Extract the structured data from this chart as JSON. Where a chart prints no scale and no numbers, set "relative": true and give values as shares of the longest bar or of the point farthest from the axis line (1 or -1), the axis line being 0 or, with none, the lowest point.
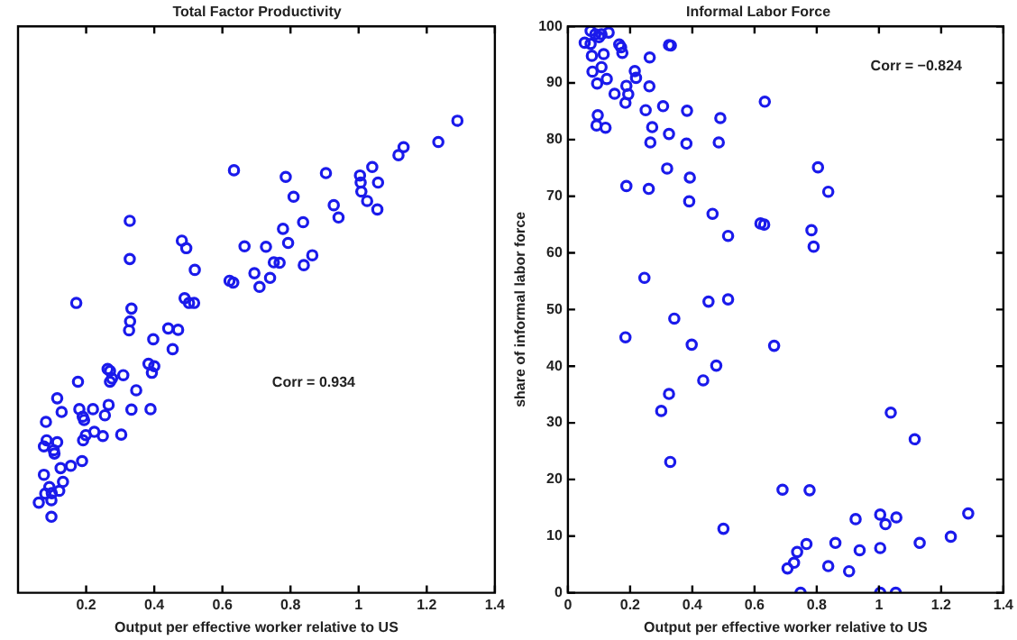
{
  "chart_data": [
    {
      "type": "scatter",
      "title": "Total Factor Productivity",
      "xlabel": "Output per effective worker relative to US",
      "annotations": [
        "Corr = 0.934"
      ],
      "relative": true,
      "marker": "circle",
      "grid": false,
      "tick_labels": "x",
      "xlim": [
        0,
        1.4
      ],
      "xticks": [
        0.2,
        0.4,
        0.6,
        0.8,
        1,
        1.2,
        1.4
      ],
      "series": [
        {
          "color": "#1a1aeb",
          "x": [
            1.29,
            1.234,
            1.132,
            1.117,
            1.04,
            1.004,
            1.006,
            1.057,
            1.008,
            1.025,
            1.055,
            0.904,
            0.786,
            0.634,
            0.809,
            0.927,
            0.941,
            0.837,
            0.778,
            0.793,
            0.728,
            0.665,
            0.328,
            0.481,
            0.494,
            0.328,
            0.519,
            0.751,
            0.768,
            0.864,
            0.839,
            0.694,
            0.74,
            0.709,
            0.621,
            0.632,
            0.171,
            0.489,
            0.502,
            0.517,
            0.333,
            0.329,
            0.326,
            0.441,
            0.47,
            0.397,
            0.454,
            0.263,
            0.27,
            0.276,
            0.27,
            0.309,
            0.383,
            0.4,
            0.393,
            0.176,
            0.115,
            0.128,
            0.18,
            0.22,
            0.19,
            0.194,
            0.333,
            0.347,
            0.389,
            0.266,
            0.255,
            0.224,
            0.249,
            0.199,
            0.191,
            0.303,
            0.082,
            0.084,
            0.076,
            0.115,
            0.105,
            0.107,
            0.125,
            0.155,
            0.188,
            0.076,
            0.08,
            0.132,
            0.121,
            0.099,
            0.092,
            0.061,
            0.098,
            0.098
          ],
          "values": [
            1.0,
            0.955,
            0.944,
            0.927,
            0.902,
            0.884,
            0.869,
            0.869,
            0.85,
            0.83,
            0.812,
            0.889,
            0.881,
            0.895,
            0.839,
            0.821,
            0.795,
            0.785,
            0.771,
            0.741,
            0.733,
            0.734,
            0.788,
            0.746,
            0.73,
            0.707,
            0.684,
            0.7,
            0.699,
            0.715,
            0.694,
            0.677,
            0.667,
            0.648,
            0.661,
            0.657,
            0.614,
            0.624,
            0.614,
            0.614,
            0.602,
            0.575,
            0.556,
            0.56,
            0.557,
            0.537,
            0.516,
            0.474,
            0.47,
            0.454,
            0.447,
            0.461,
            0.485,
            0.48,
            0.466,
            0.447,
            0.412,
            0.383,
            0.389,
            0.389,
            0.373,
            0.366,
            0.388,
            0.429,
            0.389,
            0.398,
            0.376,
            0.341,
            0.332,
            0.334,
            0.323,
            0.335,
            0.362,
            0.323,
            0.31,
            0.319,
            0.302,
            0.295,
            0.264,
            0.269,
            0.279,
            0.25,
            0.21,
            0.235,
            0.216,
            0.211,
            0.224,
            0.191,
            0.196,
            0.161
          ]
        }
      ]
    },
    {
      "type": "scatter",
      "title": "Informal Labor Force",
      "xlabel": "Output per effective worker relative to US",
      "ylabel": "share of informal labor force",
      "annotations": [
        "Corr = −0.824"
      ],
      "marker": "circle",
      "grid": false,
      "xlim": [
        0,
        1.4
      ],
      "xticks": [
        0,
        0.2,
        0.4,
        0.6,
        0.8,
        1,
        1.2,
        1.4
      ],
      "ylim": [
        0,
        100
      ],
      "yticks": [
        0,
        10,
        20,
        30,
        40,
        50,
        60,
        70,
        80,
        90,
        100
      ],
      "series": [
        {
          "color": "#1a1aeb",
          "x": [
            0.054,
            0.073,
            0.073,
            0.088,
            0.1,
            0.108,
            0.131,
            0.077,
            0.115,
            0.079,
            0.108,
            0.125,
            0.094,
            0.165,
            0.171,
            0.175,
            0.15,
            0.185,
            0.188,
            0.194,
            0.215,
            0.219,
            0.263,
            0.262,
            0.325,
            0.331,
            0.096,
            0.092,
            0.121,
            0.25,
            0.306,
            0.383,
            0.271,
            0.265,
            0.325,
            0.381,
            0.49,
            0.485,
            0.633,
            0.319,
            0.392,
            0.188,
            0.26,
            0.39,
            0.465,
            0.515,
            0.619,
            0.631,
            0.804,
            0.837,
            0.783,
            0.79,
            0.246,
            0.452,
            0.515,
            0.342,
            0.185,
            0.398,
            0.663,
            0.477,
            0.435,
            0.325,
            0.3,
            1.038,
            1.115,
            0.329,
            0.69,
            0.777,
            0.5,
            0.925,
            1.004,
            1.021,
            1.056,
            1.287,
            1.231,
            0.767,
            0.86,
            1.131,
            0.938,
            0.737,
            0.727,
            0.706,
            0.837,
            0.904,
            1.004,
            0.748,
            1.004,
            1.054
          ],
          "values": [
            97.1,
            96.9,
            99.2,
            98.6,
            98.1,
            98.6,
            98.9,
            94.8,
            95.1,
            92.0,
            92.8,
            90.7,
            89.9,
            96.8,
            96.3,
            95.3,
            88.1,
            86.5,
            89.5,
            88.0,
            92.1,
            90.9,
            94.5,
            89.4,
            96.7,
            96.6,
            84.3,
            82.5,
            82.1,
            85.2,
            85.9,
            85.1,
            82.2,
            79.5,
            81.0,
            79.3,
            83.8,
            79.5,
            86.7,
            74.9,
            73.3,
            71.8,
            71.3,
            69.1,
            66.9,
            63.0,
            65.2,
            65.0,
            75.1,
            70.8,
            64.0,
            61.1,
            55.6,
            51.4,
            51.8,
            48.4,
            45.1,
            43.8,
            43.6,
            40.1,
            37.5,
            35.1,
            32.1,
            31.8,
            27.1,
            23.1,
            18.2,
            18.1,
            11.3,
            13.0,
            13.8,
            12.1,
            13.3,
            14.0,
            9.9,
            8.6,
            8.8,
            8.8,
            7.5,
            7.2,
            5.3,
            4.3,
            4.7,
            3.8,
            7.9,
            0,
            0,
            0
          ]
        }
      ]
    }
  ]
}
